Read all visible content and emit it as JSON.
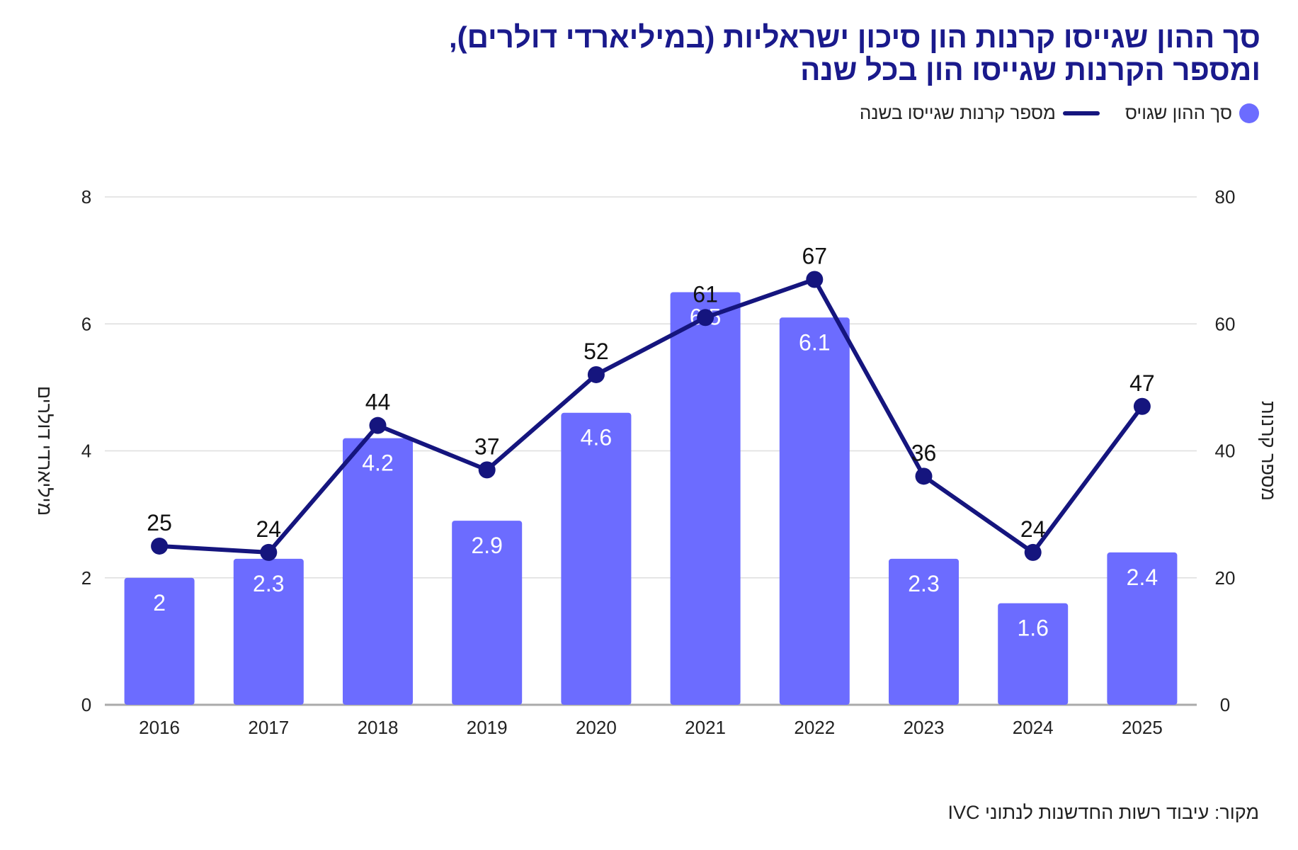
{
  "header": {
    "title_line1": "סך ההון שגייסו קרנות הון סיכון ישראליות (במיליארדי דולרים),",
    "title_line2": "ומספר הקרנות שגייסו הון בכל שנה"
  },
  "legend": {
    "bars_label": "סך ההון שגויס",
    "line_label": "מספר קרנות שגייסו בשנה"
  },
  "source": "מקור: עיבוד רשות החדשנות לנתוני IVC",
  "colors": {
    "bar": "#6c6cff",
    "line": "#15157e",
    "title": "#1a1a8c",
    "grid": "#dedede"
  },
  "chart_data": {
    "type": "bar",
    "categories": [
      "2016",
      "2017",
      "2018",
      "2019",
      "2020",
      "2021",
      "2022",
      "2023",
      "2024",
      "2025"
    ],
    "series": [
      {
        "name": "סך ההון שגויס",
        "kind": "bar",
        "axis": "left",
        "values": [
          2,
          2.3,
          4.2,
          2.9,
          4.6,
          6.5,
          6.1,
          2.3,
          1.6,
          2.4
        ]
      },
      {
        "name": "מספר קרנות שגייסו בשנה",
        "kind": "line",
        "axis": "right",
        "values": [
          25,
          24,
          44,
          37,
          52,
          61,
          67,
          36,
          24,
          47
        ]
      }
    ],
    "y_left": {
      "label": "מיליארדי דולרים",
      "ylim": [
        0,
        8
      ],
      "ticks": [
        0,
        2,
        4,
        6,
        8
      ]
    },
    "y_right": {
      "label": "מספר קרנות",
      "ylim": [
        0,
        80
      ],
      "ticks": [
        0,
        20,
        40,
        60,
        80
      ]
    },
    "grid": true,
    "legend_position": "top-right"
  }
}
